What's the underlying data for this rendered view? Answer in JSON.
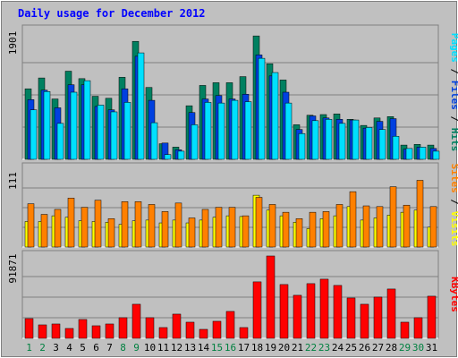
{
  "chart_data": {
    "type": "bar",
    "title": "Daily usage for December 2012",
    "categories": [
      "1",
      "2",
      "3",
      "4",
      "5",
      "6",
      "7",
      "8",
      "9",
      "10",
      "11",
      "12",
      "13",
      "14",
      "15",
      "16",
      "17",
      "18",
      "19",
      "20",
      "21",
      "22",
      "23",
      "24",
      "25",
      "26",
      "27",
      "28",
      "29",
      "30",
      "31"
    ],
    "weekend_days": [
      "1",
      "2",
      "8",
      "9",
      "15",
      "16",
      "22",
      "23",
      "29",
      "30"
    ],
    "panels": [
      {
        "name": "hits-files-pages",
        "max_label": "1901",
        "ymax": 1901,
        "ylabel_parts": [
          "Pages",
          "/",
          "Files",
          "/",
          "Hits"
        ],
        "series": [
          {
            "key": "hits",
            "color": "#008060",
            "values": [
              1040,
              1200,
              890,
              1300,
              1190,
              930,
              900,
              1210,
              1740,
              1060,
              230,
              180,
              790,
              1090,
              1130,
              1130,
              1220,
              1820,
              1410,
              1170,
              510,
              650,
              660,
              670,
              590,
              500,
              610,
              630,
              210,
              220,
              210
            ]
          },
          {
            "key": "files",
            "color": "#0040e0",
            "values": [
              880,
              1020,
              760,
              1100,
              1100,
              780,
              730,
              1040,
              1520,
              870,
              240,
              140,
              690,
              890,
              940,
              890,
              960,
              1540,
              1230,
              990,
              440,
              640,
              610,
              590,
              580,
              460,
              560,
              600,
              150,
              180,
              160
            ]
          },
          {
            "key": "pages",
            "color": "#00e0ff",
            "values": [
              730,
              1000,
              530,
              990,
              1160,
              800,
              700,
              840,
              1570,
              540,
              70,
              120,
              510,
              840,
              830,
              870,
              850,
              1490,
              1280,
              830,
              380,
              570,
              590,
              530,
              580,
              470,
              440,
              340,
              160,
              180,
              120
            ]
          }
        ]
      },
      {
        "name": "visits-sites",
        "max_label": "111",
        "ymax": 111,
        "ylabel_parts": [
          "Sites",
          "/",
          "Visits"
        ],
        "series": [
          {
            "key": "visits",
            "color": "#ffff00",
            "values": [
              36,
              36,
              44,
              42,
              37,
              36,
              35,
              32,
              37,
              38,
              34,
              38,
              34,
              38,
              42,
              44,
              43,
              73,
              52,
              44,
              35,
              26,
              40,
              44,
              57,
              38,
              41,
              45,
              49,
              52,
              28
            ]
          },
          {
            "key": "sites",
            "color": "#ff8000",
            "values": [
              61,
              46,
              53,
              69,
              56,
              66,
              40,
              64,
              64,
              60,
              50,
              62,
              41,
              53,
              56,
              56,
              44,
              70,
              60,
              49,
              40,
              49,
              50,
              60,
              78,
              58,
              57,
              85,
              59,
              94,
              57
            ]
          }
        ]
      },
      {
        "name": "kbytes",
        "max_label": "91871",
        "ymax": 91871,
        "ylabel_parts": [
          "KBytes"
        ],
        "series": [
          {
            "key": "kbytes",
            "color": "#ff0000",
            "values": [
              22000,
              15000,
              16000,
              11000,
              21000,
              14000,
              16000,
              23000,
              38000,
              23000,
              12000,
              27000,
              18000,
              10000,
              19000,
              30000,
              12000,
              63000,
              91871,
              60000,
              48000,
              61000,
              66000,
              59000,
              45000,
              38000,
              46000,
              55000,
              18000,
              23000,
              47000
            ]
          }
        ]
      }
    ]
  }
}
